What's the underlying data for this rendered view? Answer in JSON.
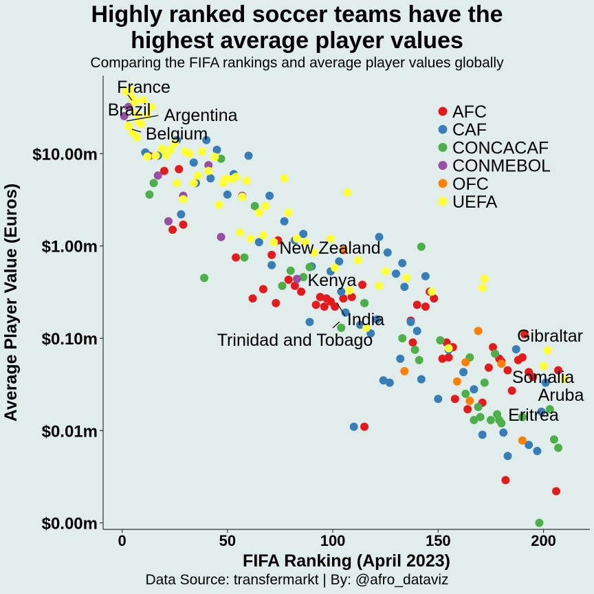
{
  "header": {
    "title_line1": "Highly ranked soccer teams have the",
    "title_line2": "highest average player values",
    "subtitle": "Comparing the FIFA rankings and average player values globally"
  },
  "caption": "Data Source: transfermarkt     |     By: @afro_dataviz",
  "chart_data": {
    "type": "scatter",
    "title": "Highly ranked soccer teams have the highest average player values",
    "subtitle": "Comparing the FIFA rankings and average player values globally",
    "xlabel": "FIFA Ranking (April 2023)",
    "ylabel": "Average Player Value (Euros)",
    "xlim": [
      -9,
      222
    ],
    "ylim_millions": [
      0.00085,
      70
    ],
    "y_scale": "log10",
    "x_ticks": [
      0,
      50,
      100,
      150,
      200
    ],
    "x_tick_labels": [
      "0",
      "50",
      "100",
      "150",
      "200"
    ],
    "y_ticks_millions": [
      0.001,
      0.01,
      0.1,
      1,
      10
    ],
    "y_tick_labels": [
      "$0.00m",
      "$0.01m",
      "$0.10m",
      "$1.00m",
      "$10.00m"
    ],
    "grid": false,
    "legend_position": "top-right",
    "series": [
      {
        "name": "AFC",
        "color": "#e41a1c",
        "points": [
          [
            20,
            6.5
          ],
          [
            24,
            1.5
          ],
          [
            27,
            6.8
          ],
          [
            29,
            1.7
          ],
          [
            54,
            0.75
          ],
          [
            62,
            0.27
          ],
          [
            67,
            0.34
          ],
          [
            71,
            0.8
          ],
          [
            73,
            0.24
          ],
          [
            74,
            1.15
          ],
          [
            79,
            0.43
          ],
          [
            82,
            0.37
          ],
          [
            85,
            0.32
          ],
          [
            92,
            0.23
          ],
          [
            94,
            0.28
          ],
          [
            96,
            0.22
          ],
          [
            97,
            0.27
          ],
          [
            99,
            0.25
          ],
          [
            101,
            0.22
          ],
          [
            105,
            0.27
          ],
          [
            109,
            0.28
          ],
          [
            114,
            0.38
          ],
          [
            115,
            0.011
          ],
          [
            137,
            0.155
          ],
          [
            138,
            0.09
          ],
          [
            140,
            0.23
          ],
          [
            144,
            0.22
          ],
          [
            146,
            0.32
          ],
          [
            148,
            0.27
          ],
          [
            152,
            0.06
          ],
          [
            154,
            0.09
          ],
          [
            155,
            0.062
          ],
          [
            157,
            0.08
          ],
          [
            158,
            0.022
          ],
          [
            164,
            0.017
          ],
          [
            171,
            0.02
          ],
          [
            174,
            0.048
          ],
          [
            176,
            0.08
          ],
          [
            179,
            0.06
          ],
          [
            180,
            0.056
          ],
          [
            182,
            0.0029
          ],
          [
            183,
            0.045
          ],
          [
            185,
            0.027
          ],
          [
            188,
            0.058
          ],
          [
            190,
            0.062
          ],
          [
            191,
            0.11
          ],
          [
            193,
            0.043
          ],
          [
            195,
            0.038
          ],
          [
            206,
            0.0022
          ],
          [
            207,
            0.045
          ]
        ]
      },
      {
        "name": "CAF",
        "color": "#377eb8",
        "points": [
          [
            11,
            10.3
          ],
          [
            17,
            9.5
          ],
          [
            26,
            14
          ],
          [
            28,
            2.2
          ],
          [
            34,
            8
          ],
          [
            35,
            4.8
          ],
          [
            40,
            14
          ],
          [
            42,
            5.4
          ],
          [
            45,
            11
          ],
          [
            50,
            3.6
          ],
          [
            53,
            6
          ],
          [
            60,
            9.5
          ],
          [
            65,
            1.1
          ],
          [
            70,
            3.5
          ],
          [
            71,
            0.62
          ],
          [
            77,
            1.85
          ],
          [
            82,
            1.15
          ],
          [
            86,
            1.35
          ],
          [
            89,
            0.15
          ],
          [
            90,
            0.6
          ],
          [
            99,
            0.53
          ],
          [
            103,
            0.68
          ],
          [
            104,
            0.32
          ],
          [
            106,
            0.19
          ],
          [
            110,
            0.011
          ],
          [
            113,
            0.14
          ],
          [
            115,
            0.24
          ],
          [
            118,
            0.113
          ],
          [
            121,
            0.16
          ],
          [
            122,
            1.25
          ],
          [
            124,
            0.035
          ],
          [
            126,
            0.85
          ],
          [
            127,
            0.033
          ],
          [
            130,
            0.5
          ],
          [
            132,
            0.06
          ],
          [
            133,
            0.65
          ],
          [
            134,
            0.36
          ],
          [
            137,
            0.15
          ],
          [
            140,
            0.12
          ],
          [
            142,
            0.036
          ],
          [
            144,
            0.47
          ],
          [
            150,
            0.022
          ],
          [
            155,
            0.075
          ],
          [
            162,
            0.043
          ],
          [
            167,
            0.028
          ],
          [
            171,
            0.009
          ],
          [
            181,
            0.0095
          ],
          [
            183,
            0.0053
          ],
          [
            187,
            0.076
          ],
          [
            193,
            0.007
          ],
          [
            197,
            0.006
          ],
          [
            199,
            0.016
          ],
          [
            201,
            0.033
          ]
        ]
      },
      {
        "name": "CONCACAF",
        "color": "#4daf4a",
        "points": [
          [
            13,
            3.6
          ],
          [
            15,
            4.8
          ],
          [
            39,
            0.45
          ],
          [
            47,
            8.8
          ],
          [
            58,
            0.75
          ],
          [
            63,
            2.7
          ],
          [
            76,
            0.37
          ],
          [
            80,
            0.54
          ],
          [
            86,
            0.46
          ],
          [
            89,
            0.59
          ],
          [
            104,
            0.13
          ],
          [
            115,
            0.24
          ],
          [
            133,
            0.1
          ],
          [
            139,
            0.075
          ],
          [
            141,
            0.058
          ],
          [
            142,
            0.98
          ],
          [
            151,
            0.095
          ],
          [
            163,
            0.025
          ],
          [
            165,
            0.062
          ],
          [
            167,
            0.013
          ],
          [
            169,
            0.018
          ],
          [
            170,
            0.014
          ],
          [
            172,
            0.033
          ],
          [
            175,
            0.013
          ],
          [
            177,
            0.068
          ],
          [
            178,
            0.015
          ],
          [
            179,
            0.013
          ],
          [
            180,
            0.012
          ],
          [
            190,
            0.014
          ],
          [
            203,
            0.017
          ],
          [
            205,
            0.008
          ],
          [
            207,
            0.0065
          ],
          [
            198,
            0.001
          ]
        ]
      },
      {
        "name": "CONMEBOL",
        "color": "#984ea3",
        "points": [
          [
            1,
            25.5
          ],
          [
            3,
            32
          ],
          [
            13,
            9.5
          ],
          [
            17,
            5.8
          ],
          [
            22,
            1.85
          ],
          [
            29,
            3.5
          ],
          [
            41,
            7.5
          ],
          [
            47,
            1.25
          ],
          [
            57,
            3.5
          ],
          [
            83,
            0.44
          ]
        ]
      },
      {
        "name": "OFC",
        "color": "#ff7f00",
        "points": [
          [
            105,
            0.9
          ],
          [
            134,
            0.044
          ],
          [
            159,
            0.034
          ],
          [
            163,
            0.055
          ],
          [
            165,
            0.021
          ],
          [
            169,
            0.12
          ],
          [
            180,
            0.053
          ],
          [
            190,
            0.0078
          ]
        ]
      },
      {
        "name": "UEFA",
        "color": "#ffff33",
        "points": [
          [
            2,
            47
          ],
          [
            4,
            49
          ],
          [
            5,
            40
          ],
          [
            6,
            36
          ],
          [
            7,
            27
          ],
          [
            8,
            22
          ],
          [
            9,
            21
          ],
          [
            10,
            38
          ],
          [
            12,
            26
          ],
          [
            14,
            32
          ],
          [
            3,
            20
          ],
          [
            5,
            17
          ],
          [
            7,
            15
          ],
          [
            12,
            9.3
          ],
          [
            16,
            9.5
          ],
          [
            19,
            11.3
          ],
          [
            21,
            9.6
          ],
          [
            23,
            11
          ],
          [
            25,
            13
          ],
          [
            26,
            4.8
          ],
          [
            29,
            3.2
          ],
          [
            30,
            10.5
          ],
          [
            32,
            10
          ],
          [
            34,
            4.8
          ],
          [
            36,
            5.8
          ],
          [
            38,
            10.5
          ],
          [
            41,
            6.5
          ],
          [
            44,
            9.2
          ],
          [
            46,
            2.8
          ],
          [
            48,
            4.8
          ],
          [
            49,
            5.3
          ],
          [
            52,
            5.3
          ],
          [
            54,
            5.6
          ],
          [
            56,
            1.4
          ],
          [
            57,
            3.4
          ],
          [
            59,
            5.1
          ],
          [
            61,
            1.2
          ],
          [
            65,
            2.3
          ],
          [
            67,
            1.3
          ],
          [
            68,
            2.7
          ],
          [
            72,
            1.1
          ],
          [
            77,
            5.4
          ],
          [
            79,
            2.3
          ],
          [
            83,
            1.2
          ],
          [
            87,
            1.1
          ],
          [
            91,
            0.85
          ],
          [
            99,
            1.2
          ],
          [
            101,
            0.58
          ],
          [
            107,
            3.8
          ],
          [
            108,
            0.33
          ],
          [
            112,
            0.7
          ],
          [
            116,
            0.13
          ],
          [
            122,
            0.37
          ],
          [
            125,
            0.53
          ],
          [
            135,
            0.45
          ],
          [
            147,
            0.32
          ],
          [
            155,
            0.078
          ],
          [
            171,
            0.35
          ],
          [
            172,
            0.44
          ],
          [
            200,
            0.05
          ],
          [
            202,
            0.074
          ],
          [
            210,
            0.036
          ]
        ]
      }
    ],
    "annotations": [
      {
        "text": "France",
        "x": 2,
        "y": 47
      },
      {
        "text": "Brazil",
        "x": 3,
        "y": 32
      },
      {
        "text": "Argentina",
        "x": 1,
        "y": 25.5
      },
      {
        "text": "Belgium",
        "x": 4,
        "y": 20
      },
      {
        "text": "New Zealand",
        "x": 105,
        "y": 0.9
      },
      {
        "text": "Kenya",
        "x": 83,
        "y": 0.44
      },
      {
        "text": "India",
        "x": 101,
        "y": 0.22
      },
      {
        "text": "Trinidad and Tobago",
        "x": 104,
        "y": 0.13
      },
      {
        "text": "Gibraltar",
        "x": 193,
        "y": 0.06
      },
      {
        "text": "Somalia",
        "x": 185,
        "y": 0.027
      },
      {
        "text": "Aruba",
        "x": 203,
        "y": 0.017
      },
      {
        "text": "Eritrea",
        "x": 181,
        "y": 0.0095
      }
    ]
  }
}
